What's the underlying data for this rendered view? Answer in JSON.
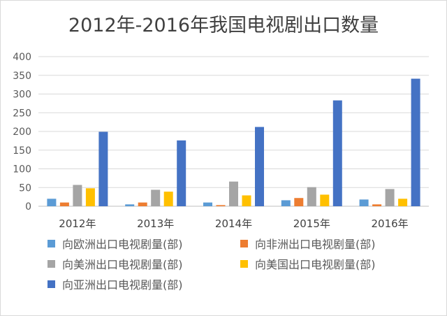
{
  "chart_data": {
    "type": "bar",
    "title": "2012年-2016年我国电视剧出口数量",
    "categories": [
      "2012年",
      "2013年",
      "2014年",
      "2015年",
      "2016年"
    ],
    "ylim": [
      0,
      400
    ],
    "yticks": [
      0,
      50,
      100,
      150,
      200,
      250,
      300,
      350,
      400
    ],
    "grid": true,
    "legend_position": "bottom",
    "series": [
      {
        "name": "向欧洲出口电视剧量(部)",
        "color": "#5b9bd5",
        "values": [
          20,
          5,
          10,
          16,
          18
        ]
      },
      {
        "name": "向非洲出口电视剧量(部)",
        "color": "#ed7d31",
        "values": [
          10,
          10,
          3,
          22,
          5
        ]
      },
      {
        "name": "向美洲出口电视剧量(部)",
        "color": "#a5a5a5",
        "values": [
          57,
          44,
          66,
          51,
          46
        ]
      },
      {
        "name": "向美国出口电视剧量(部)",
        "color": "#ffc000",
        "values": [
          48,
          39,
          29,
          31,
          20
        ]
      },
      {
        "name": "向亚洲出口电视剧量(部)",
        "color": "#4472c4",
        "values": [
          199,
          176,
          212,
          283,
          341
        ]
      }
    ]
  }
}
